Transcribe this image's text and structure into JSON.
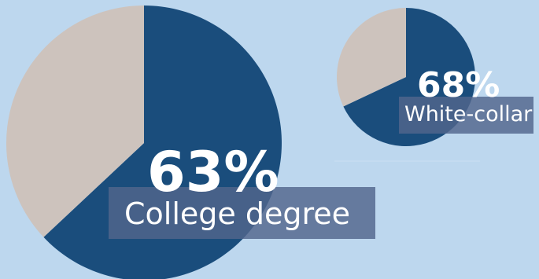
{
  "colors": {
    "background": "#bdd7ee",
    "share": "#1a4d7c",
    "remainder": "#cdc3bd",
    "label_box": "#52658c",
    "text": "#ffffff"
  },
  "chart_data": [
    {
      "type": "pie",
      "slices": [
        {
          "label": "College degree",
          "value": 63,
          "color": "#1a4d7c"
        },
        {
          "label": "",
          "value": 37,
          "color": "#cdc3bd"
        }
      ],
      "value_label": "63%",
      "caption": "College degree"
    },
    {
      "type": "pie",
      "slices": [
        {
          "label": "White-collar",
          "value": 68,
          "color": "#1a4d7c"
        },
        {
          "label": "",
          "value": 32,
          "color": "#cdc3bd"
        }
      ],
      "value_label": "68%",
      "caption": "White-collar"
    }
  ]
}
